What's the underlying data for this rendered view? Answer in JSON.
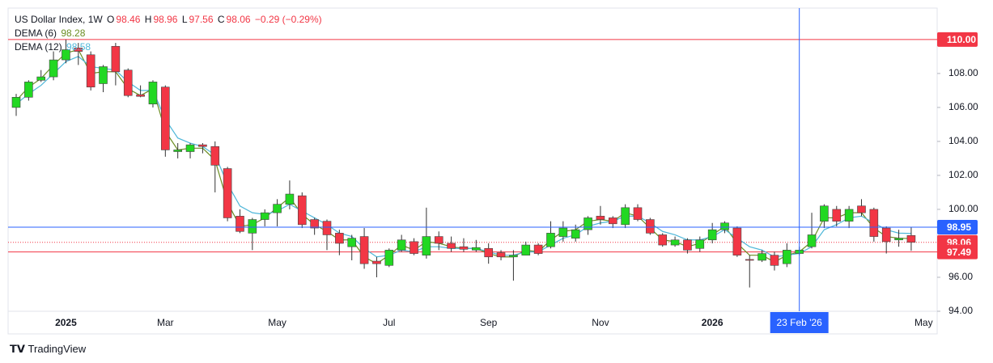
{
  "chart_data": {
    "type": "candlestick",
    "title": "US Dollar Index, 1W",
    "ohlc_keys": [
      "O",
      "H",
      "L",
      "C"
    ],
    "change": "−0.29 (−0.29%)",
    "brand": "TradingView",
    "up_color": "#22d822",
    "down_color": "#f23645",
    "categories": [
      null,
      null,
      null,
      null,
      "2025",
      null,
      null,
      null,
      null,
      null,
      null,
      null,
      "Mar",
      null,
      null,
      null,
      null,
      null,
      null,
      null,
      null,
      "May",
      null,
      null,
      null,
      null,
      null,
      null,
      null,
      null,
      "Jul",
      null,
      null,
      null,
      null,
      null,
      null,
      null,
      "Sep",
      null,
      null,
      null,
      null,
      null,
      null,
      null,
      null,
      "Nov",
      null,
      null,
      null,
      null,
      null,
      null,
      null,
      null,
      "2026",
      null,
      null,
      null,
      null,
      null,
      null,
      "23 Feb '26",
      null,
      null,
      null,
      null,
      null,
      null,
      null,
      null,
      null,
      "May"
    ],
    "open": [
      106.0,
      106.6,
      107.6,
      107.8,
      108.8,
      109.5,
      109.1,
      107.4,
      109.6,
      108.2,
      106.75,
      106.2,
      107.2,
      103.4,
      103.4,
      103.8,
      103.7,
      102.4,
      99.6,
      98.6,
      99.4,
      99.8,
      100.3,
      100.8,
      99.4,
      99.3,
      98.6,
      97.8,
      98.4,
      96.95,
      96.7,
      97.6,
      98.1,
      97.3,
      98.4,
      98.0,
      97.8,
      97.6,
      97.7,
      97.45,
      97.2,
      97.3,
      97.9,
      97.8,
      98.4,
      98.3,
      98.8,
      99.6,
      99.5,
      99.1,
      100.1,
      99.4,
      98.5,
      97.9,
      98.2,
      97.7,
      98.2,
      98.8,
      98.9,
      97.05,
      97.0,
      97.3,
      96.8,
      97.4,
      97.8,
      99.3,
      100.0,
      99.3,
      100.2,
      100.0,
      98.9,
      98.2,
      98.46,
      null
    ],
    "high": [
      106.8,
      107.6,
      108.2,
      109.3,
      110.0,
      109.8,
      109.3,
      108.5,
      109.8,
      108.3,
      107.3,
      107.6,
      107.3,
      103.9,
      103.9,
      103.9,
      104.0,
      102.5,
      100.0,
      99.5,
      100.0,
      100.6,
      101.7,
      101.0,
      99.5,
      99.4,
      98.8,
      98.5,
      98.9,
      97.2,
      97.7,
      98.5,
      98.3,
      100.1,
      98.7,
      98.4,
      98.3,
      98.2,
      98.0,
      97.6,
      97.6,
      98.1,
      98.0,
      99.3,
      99.3,
      99.1,
      99.6,
      100.2,
      99.6,
      100.3,
      100.3,
      99.5,
      98.6,
      98.4,
      98.3,
      98.4,
      99.2,
      99.3,
      99.0,
      97.3,
      97.6,
      97.5,
      98.0,
      97.8,
      99.8,
      100.3,
      100.2,
      100.2,
      100.6,
      100.1,
      99.0,
      98.8,
      98.96,
      null
    ],
    "low": [
      105.5,
      106.4,
      107.5,
      107.6,
      108.6,
      108.5,
      107.0,
      106.9,
      107.3,
      106.6,
      106.6,
      106.0,
      103.1,
      103.0,
      103.0,
      103.3,
      101.0,
      99.3,
      98.6,
      97.6,
      99.0,
      99.0,
      100.0,
      98.9,
      98.5,
      97.6,
      97.3,
      97.0,
      96.5,
      96.0,
      96.6,
      97.5,
      97.3,
      97.1,
      97.6,
      97.5,
      97.5,
      97.5,
      96.8,
      97.0,
      95.8,
      97.3,
      97.3,
      97.7,
      98.1,
      98.1,
      98.5,
      99.1,
      98.9,
      98.9,
      99.3,
      98.5,
      97.8,
      97.8,
      97.4,
      97.5,
      98.0,
      98.6,
      97.2,
      95.4,
      96.9,
      96.4,
      96.6,
      97.3,
      97.7,
      98.9,
      99.0,
      98.9,
      99.6,
      98.1,
      97.4,
      97.8,
      97.56,
      null
    ],
    "close": [
      106.6,
      107.5,
      107.8,
      108.8,
      109.4,
      109.3,
      107.2,
      108.4,
      108.1,
      106.7,
      106.65,
      107.5,
      103.5,
      103.5,
      103.8,
      103.7,
      102.6,
      99.5,
      98.7,
      99.4,
      99.8,
      100.3,
      100.9,
      99.1,
      98.9,
      98.5,
      98.0,
      98.3,
      96.8,
      96.8,
      97.6,
      98.2,
      97.4,
      98.4,
      98.0,
      97.7,
      97.65,
      97.75,
      97.2,
      97.2,
      97.3,
      97.9,
      97.4,
      98.6,
      98.9,
      98.8,
      99.5,
      99.4,
      99.15,
      100.1,
      99.4,
      98.6,
      97.9,
      98.2,
      97.6,
      98.2,
      98.8,
      99.2,
      97.3,
      97.0,
      97.4,
      96.7,
      97.6,
      97.6,
      98.5,
      100.2,
      99.3,
      100.0,
      99.8,
      98.4,
      98.1,
      98.3,
      98.06,
      null
    ],
    "series": [
      {
        "name": "DEMA (6)",
        "color": "#6b8e23",
        "values": [
          106.4,
          107.2,
          107.7,
          108.5,
          109.2,
          109.4,
          108.0,
          108.1,
          108.1,
          107.1,
          106.7,
          107.1,
          104.6,
          103.5,
          103.6,
          103.6,
          102.9,
          100.4,
          99.0,
          99.1,
          99.5,
          100.1,
          100.7,
          99.7,
          99.1,
          98.7,
          98.2,
          98.2,
          97.2,
          96.8,
          97.3,
          97.9,
          97.6,
          98.1,
          98.0,
          97.8,
          97.7,
          97.7,
          97.4,
          97.2,
          97.2,
          97.6,
          97.5,
          98.2,
          98.7,
          98.8,
          99.3,
          99.4,
          99.3,
          99.8,
          99.6,
          98.9,
          98.2,
          98.1,
          97.8,
          98.0,
          98.5,
          99.0,
          98.0,
          97.3,
          97.3,
          96.9,
          97.3,
          97.5,
          98.1,
          99.5,
          99.5,
          99.8,
          99.8,
          98.9,
          98.4,
          98.3,
          98.28,
          null
        ]
      },
      {
        "name": "DEMA (12)",
        "color": "#4fb7d9",
        "values": [
          106.2,
          106.8,
          107.3,
          108.0,
          108.7,
          109.0,
          108.4,
          108.3,
          108.2,
          107.5,
          107.0,
          107.0,
          105.3,
          104.2,
          103.9,
          103.7,
          103.2,
          101.5,
          100.2,
          99.8,
          99.7,
          99.9,
          100.3,
          99.9,
          99.5,
          99.1,
          98.6,
          98.4,
          97.7,
          97.2,
          97.3,
          97.6,
          97.5,
          97.8,
          97.8,
          97.7,
          97.7,
          97.7,
          97.5,
          97.3,
          97.3,
          97.5,
          97.5,
          97.9,
          98.3,
          98.5,
          99.0,
          99.2,
          99.3,
          99.6,
          99.6,
          99.2,
          98.7,
          98.5,
          98.2,
          98.2,
          98.4,
          98.8,
          98.3,
          97.8,
          97.6,
          97.2,
          97.3,
          97.4,
          97.8,
          98.8,
          99.1,
          99.5,
          99.6,
          99.2,
          98.8,
          98.6,
          98.58,
          null
        ]
      }
    ],
    "ylim": [
      94,
      111.85
    ],
    "yticks": [
      {
        "value": 94,
        "label": "94.00"
      },
      {
        "value": 96,
        "label": "96.00"
      },
      {
        "value": 98,
        "label": "98.00"
      },
      {
        "value": 100,
        "label": "100.00"
      },
      {
        "value": 102,
        "label": "102.00"
      },
      {
        "value": 104,
        "label": "104.00"
      },
      {
        "value": 106,
        "label": "106.00"
      },
      {
        "value": 108,
        "label": "108.00"
      }
    ],
    "price_lines": [
      {
        "value": 110,
        "label": "110.00",
        "color": "#f23645",
        "style": "solid"
      },
      {
        "value": 98.06,
        "color": "#f23645",
        "style": "dotted"
      },
      {
        "value": 97.49,
        "color": "#f23645",
        "style": "solid"
      }
    ],
    "crosshair": {
      "x": "23 Feb '26",
      "y": 98.95,
      "color": "#2962ff"
    }
  }
}
